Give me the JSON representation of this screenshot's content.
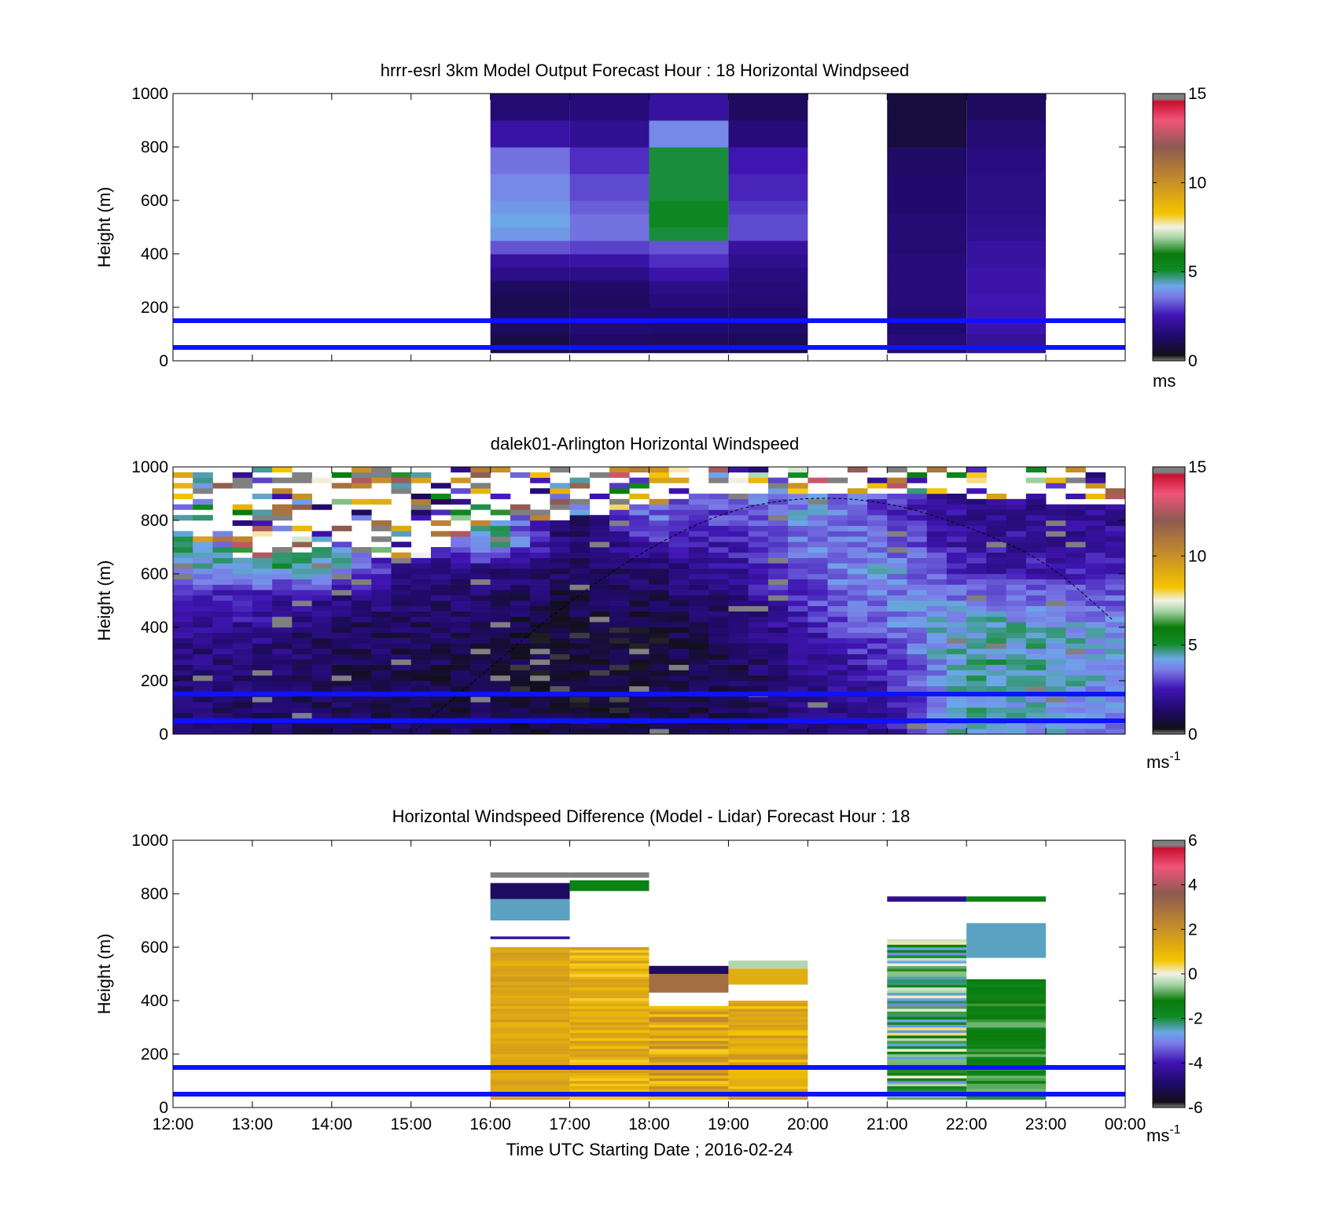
{
  "x_axis": {
    "ticks": [
      "12:00",
      "13:00",
      "14:00",
      "15:00",
      "16:00",
      "17:00",
      "18:00",
      "19:00",
      "20:00",
      "21:00",
      "22:00",
      "23:00",
      "00:00"
    ],
    "label": "Time UTC  Starting Date ; 2016-02-24"
  },
  "colors": {
    "reference_lines": "#0a14ff",
    "missing_data": "#808080"
  },
  "chart_data": [
    {
      "type": "heatmap",
      "title": "hrrr-esrl 3km Model Output   Forecast Hour : 18 Horizontal Windpseed",
      "ylabel": "Height (m)",
      "yticks": [
        "0",
        "200",
        "400",
        "600",
        "800",
        "1000"
      ],
      "ylim": [
        0,
        1000
      ],
      "xlim": [
        "12:00",
        "00:00"
      ],
      "reference_lines_m": [
        50,
        150
      ],
      "colorbar": {
        "ticks": [
          "0",
          "5",
          "10",
          "15"
        ],
        "range": [
          0,
          15
        ],
        "unit": "ms"
      },
      "columns": [
        {
          "start": "16:00",
          "heights_m": [
            30,
            60,
            100,
            150,
            200,
            250,
            300,
            350,
            400,
            450,
            500,
            550,
            600,
            700,
            800,
            900,
            1000
          ],
          "values": [
            1.0,
            0.9,
            1.2,
            1.0,
            1.0,
            1.2,
            1.8,
            2.2,
            3.2,
            4.0,
            4.2,
            4.0,
            3.8,
            3.5,
            2.3,
            1.5,
            1.3
          ]
        },
        {
          "start": "17:00",
          "heights_m": [
            30,
            60,
            100,
            150,
            200,
            250,
            300,
            350,
            400,
            450,
            500,
            550,
            600,
            700,
            800,
            900,
            1000
          ],
          "values": [
            1.2,
            1.3,
            1.5,
            1.4,
            1.2,
            1.3,
            1.8,
            2.3,
            3.0,
            3.5,
            3.5,
            3.3,
            3.1,
            2.8,
            2.0,
            1.6,
            1.5
          ]
        },
        {
          "start": "18:00",
          "heights_m": [
            30,
            60,
            100,
            150,
            200,
            250,
            300,
            350,
            400,
            450,
            500,
            550,
            600,
            700,
            800,
            900,
            1000
          ],
          "values": [
            1.1,
            1.2,
            1.4,
            1.3,
            1.6,
            1.8,
            2.4,
            2.8,
            3.2,
            5.0,
            5.2,
            5.2,
            5.0,
            5.0,
            3.8,
            2.2,
            1.6
          ]
        },
        {
          "start": "19:00",
          "heights_m": [
            30,
            60,
            100,
            150,
            200,
            250,
            300,
            350,
            400,
            450,
            500,
            550,
            600,
            700,
            800,
            900,
            1000
          ],
          "values": [
            1.0,
            1.1,
            1.3,
            1.3,
            1.5,
            1.6,
            1.7,
            1.9,
            2.2,
            3.1,
            3.1,
            2.9,
            2.7,
            2.5,
            1.6,
            1.2,
            1.1
          ]
        },
        {
          "start": "21:00",
          "heights_m": [
            30,
            60,
            100,
            150,
            200,
            250,
            300,
            350,
            400,
            450,
            500,
            550,
            600,
            700,
            800,
            900,
            1000
          ],
          "values": [
            1.5,
            1.6,
            1.4,
            1.5,
            1.6,
            1.6,
            1.6,
            1.6,
            1.5,
            1.5,
            1.5,
            1.4,
            1.4,
            1.3,
            0.8,
            0.8,
            1.3
          ]
        },
        {
          "start": "22:00",
          "heights_m": [
            30,
            60,
            100,
            150,
            200,
            250,
            300,
            350,
            400,
            450,
            500,
            550,
            600,
            700,
            800,
            900,
            1000
          ],
          "values": [
            2.2,
            2.1,
            2.4,
            2.4,
            2.5,
            2.4,
            2.4,
            2.2,
            2.2,
            2.0,
            1.9,
            1.8,
            1.8,
            1.7,
            1.5,
            1.2,
            0.6
          ]
        }
      ]
    },
    {
      "type": "heatmap",
      "title": "dalek01-Arlington  Horizontal Windspeed",
      "ylabel": "Height (m)",
      "yticks": [
        "0",
        "200",
        "400",
        "600",
        "800",
        "1000"
      ],
      "ylim": [
        0,
        1000
      ],
      "xlim": [
        "12:00",
        "00:00"
      ],
      "reference_lines_m": [
        50,
        150
      ],
      "time_step_min": 15,
      "time_range": [
        "12:00",
        "23:50"
      ],
      "level_step_m": 20,
      "colorbar": {
        "ticks": [
          "0",
          "5",
          "10",
          "15"
        ],
        "range": [
          0,
          15
        ],
        "unit_base": "ms",
        "unit_exp": "-1"
      },
      "profiles": [
        {
          "time": "12:00",
          "top_m": 760,
          "levels_m": [
            0,
            200,
            350,
            500,
            650,
            760
          ],
          "speeds": [
            1.5,
            1.5,
            1.8,
            2.5,
            4.5,
            5.0
          ]
        },
        {
          "time": "13:00",
          "top_m": 640,
          "levels_m": [
            0,
            200,
            350,
            500,
            620
          ],
          "speeds": [
            1.2,
            1.3,
            2.0,
            2.5,
            4.5
          ]
        },
        {
          "time": "14:00",
          "top_m": 700,
          "levels_m": [
            0,
            200,
            350,
            500,
            620
          ],
          "speeds": [
            1.2,
            1.0,
            1.2,
            1.8,
            4.8
          ]
        },
        {
          "time": "15:00",
          "top_m": 620,
          "levels_m": [
            0,
            200,
            400,
            550
          ],
          "speeds": [
            1.2,
            1.0,
            1.2,
            1.8
          ]
        },
        {
          "time": "16:00",
          "top_m": 800,
          "levels_m": [
            0,
            200,
            400,
            600,
            700
          ],
          "speeds": [
            1.0,
            0.8,
            1.0,
            1.5,
            4.8
          ]
        },
        {
          "time": "17:00",
          "top_m": 800,
          "levels_m": [
            0,
            200,
            400,
            600
          ],
          "speeds": [
            0.7,
            0.6,
            0.8,
            1.2
          ]
        },
        {
          "time": "18:00",
          "top_m": 850,
          "levels_m": [
            0,
            200,
            400,
            600,
            800
          ],
          "speeds": [
            0.8,
            0.7,
            0.8,
            1.5,
            3.5
          ]
        },
        {
          "time": "19:00",
          "top_m": 900,
          "levels_m": [
            0,
            200,
            400,
            600,
            800
          ],
          "speeds": [
            1.0,
            1.0,
            1.2,
            2.0,
            3.0
          ]
        },
        {
          "time": "20:00",
          "top_m": 900,
          "levels_m": [
            0,
            200,
            400,
            600,
            800
          ],
          "speeds": [
            1.5,
            1.8,
            2.5,
            3.5,
            4.0
          ]
        },
        {
          "time": "21:00",
          "top_m": 900,
          "levels_m": [
            0,
            200,
            400,
            600,
            800
          ],
          "speeds": [
            2.0,
            2.5,
            3.5,
            4.0,
            3.0
          ]
        },
        {
          "time": "22:00",
          "top_m": 880,
          "levels_m": [
            0,
            200,
            400,
            600,
            800
          ],
          "speeds": [
            4.5,
            4.5,
            4.5,
            2.5,
            2.0
          ]
        },
        {
          "time": "23:00",
          "top_m": 860,
          "levels_m": [
            0,
            200,
            400,
            600,
            800
          ],
          "speeds": [
            4.0,
            4.5,
            4.2,
            2.5,
            2.0
          ]
        },
        {
          "time": "23:50",
          "top_m": 850,
          "levels_m": [
            0,
            200,
            400,
            600,
            800
          ],
          "speeds": [
            3.5,
            4.0,
            4.0,
            2.5,
            2.0
          ]
        }
      ],
      "overlay_curve": {
        "style": "dashed",
        "times": [
          "15:00",
          "16:00",
          "17:00",
          "18:00",
          "19:00",
          "20:00",
          "21:00",
          "22:00",
          "23:00",
          "23:50"
        ],
        "heights_m": [
          0,
          250,
          500,
          700,
          840,
          890,
          870,
          780,
          650,
          430
        ]
      }
    },
    {
      "type": "heatmap",
      "title": "Horizontal Windspeed Difference (Model - Lidar) Forecast Hour : 18",
      "ylabel": "Height (m)",
      "yticks": [
        "0",
        "200",
        "400",
        "600",
        "800",
        "1000"
      ],
      "ylim": [
        0,
        1000
      ],
      "xlim": [
        "12:00",
        "00:00"
      ],
      "reference_lines_m": [
        50,
        150
      ],
      "colorbar": {
        "ticks": [
          "-6",
          "-4",
          "-2",
          "0",
          "2",
          "4",
          "6"
        ],
        "range": [
          -6,
          6
        ],
        "unit_base": "ms",
        "unit_exp": "-1"
      },
      "columns": [
        {
          "start": "16:00",
          "segments": [
            {
              "from_m": 30,
              "to_m": 600,
              "low": 1.0,
              "high": 1.7
            },
            {
              "from_m": 630,
              "to_m": 640,
              "value": -4.3
            },
            {
              "from_m": 700,
              "to_m": 780,
              "value": -2.5
            },
            {
              "from_m": 780,
              "to_m": 840,
              "value": -5.0
            },
            {
              "from_m": 860,
              "to_m": 880,
              "value": -6.0
            }
          ]
        },
        {
          "start": "17:00",
          "segments": [
            {
              "from_m": 30,
              "to_m": 600,
              "low": 0.4,
              "high": 1.8
            },
            {
              "from_m": 810,
              "to_m": 850,
              "value": -1.5
            },
            {
              "from_m": 860,
              "to_m": 880,
              "value": -6.0
            }
          ]
        },
        {
          "start": "18:00",
          "segments": [
            {
              "from_m": 30,
              "to_m": 380,
              "low": 0.5,
              "high": 2.3
            },
            {
              "from_m": 430,
              "to_m": 500,
              "value": 3.0
            },
            {
              "from_m": 500,
              "to_m": 530,
              "value": -5.0
            }
          ]
        },
        {
          "start": "19:00",
          "segments": [
            {
              "from_m": 30,
              "to_m": 400,
              "low": 0.5,
              "high": 2.0
            },
            {
              "from_m": 460,
              "to_m": 520,
              "value": 1.2
            },
            {
              "from_m": 520,
              "to_m": 550,
              "value": -0.4
            }
          ]
        },
        {
          "start": "21:00",
          "segments": [
            {
              "from_m": 30,
              "to_m": 630,
              "low": -3.0,
              "high": 0.3
            },
            {
              "from_m": 770,
              "to_m": 790,
              "value": -4.5
            }
          ]
        },
        {
          "start": "22:00",
          "segments": [
            {
              "from_m": 30,
              "to_m": 480,
              "low": -1.7,
              "high": -0.7
            },
            {
              "from_m": 560,
              "to_m": 690,
              "value": -2.5
            },
            {
              "from_m": 770,
              "to_m": 790,
              "value": -1.5
            }
          ]
        }
      ]
    }
  ]
}
